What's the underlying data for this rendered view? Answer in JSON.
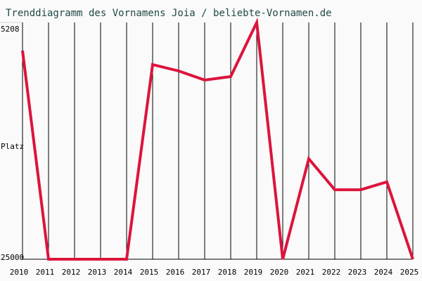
{
  "chart_data": {
    "type": "line",
    "title": "Trenddiagramm des Vornamens Joia / beliebte-Vornamen.de",
    "y_label": "Platz",
    "x": [
      2010,
      2011,
      2012,
      2013,
      2014,
      2015,
      2016,
      2017,
      2018,
      2019,
      2020,
      2021,
      2022,
      2023,
      2024,
      2025
    ],
    "xlim": [
      2010,
      2025
    ],
    "xticks": [
      2010,
      2011,
      2012,
      2013,
      2014,
      2015,
      2016,
      2017,
      2018,
      2019,
      2020,
      2021,
      2022,
      2023,
      2024,
      2025
    ],
    "series": [
      {
        "name": "Joia",
        "color": "#dc143c",
        "values": [
          7560,
          25000,
          25000,
          25000,
          25000,
          8730,
          9260,
          10020,
          9730,
          5208,
          25000,
          16600,
          19190,
          19190,
          18540,
          25000
        ]
      }
    ],
    "ylim": [
      25000,
      5208
    ],
    "yticks": [
      5208,
      25000
    ],
    "grid": true
  }
}
